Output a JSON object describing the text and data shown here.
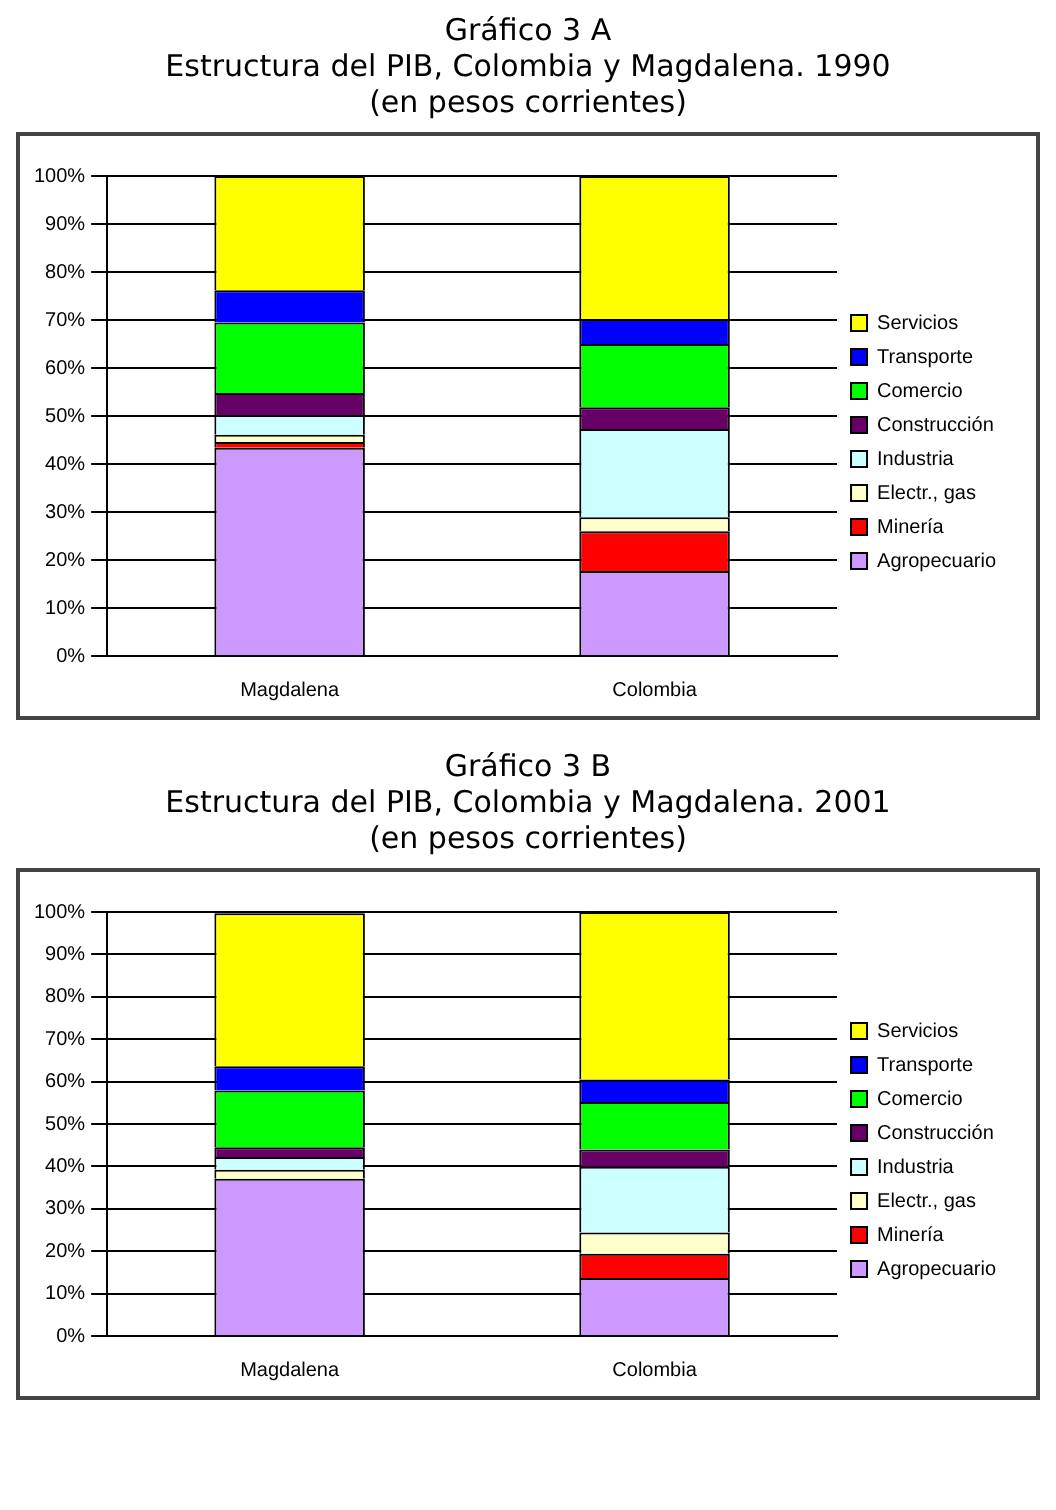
{
  "chart_data": [
    {
      "type": "bar",
      "title": "Gráfico 3 A",
      "subtitle": "Estructura del PIB, Colombia y Magdalena. 1990\n(en pesos corrientes)",
      "categories": [
        "Magdalena",
        "Colombia"
      ],
      "stacked": true,
      "ylim": [
        0,
        100
      ],
      "yticks": [
        {
          "value": 0,
          "label": "0%"
        },
        {
          "value": 10,
          "label": "10%"
        },
        {
          "value": 20,
          "label": "20%"
        },
        {
          "value": 30,
          "label": "30%"
        },
        {
          "value": 40,
          "label": "40%"
        },
        {
          "value": 50,
          "label": "50%"
        },
        {
          "value": 60,
          "label": "60%"
        },
        {
          "value": 70,
          "label": "70%"
        },
        {
          "value": 80,
          "label": "80%"
        },
        {
          "value": 90,
          "label": "90%"
        },
        {
          "value": 100,
          "label": "100%"
        }
      ],
      "grid": "y",
      "legend": "right",
      "series": [
        {
          "name": "Agropecuario",
          "color": "#cc99ff",
          "values": [
            43.4,
            17.7
          ]
        },
        {
          "name": "Minería",
          "color": "#ff0000",
          "values": [
            1.2,
            8.3
          ]
        },
        {
          "name": "Electr., gas",
          "color": "#ffffcc",
          "values": [
            1.5,
            2.9
          ]
        },
        {
          "name": "Industria",
          "color": "#ccffff",
          "values": [
            4.1,
            18.4
          ]
        },
        {
          "name": "Construcción",
          "color": "#660066",
          "values": [
            4.6,
            4.5
          ]
        },
        {
          "name": "Comercio",
          "color": "#00ff00",
          "values": [
            14.7,
            13.2
          ]
        },
        {
          "name": "Transporte",
          "color": "#0000ff",
          "values": [
            6.7,
            5.2
          ]
        },
        {
          "name": "Servicios",
          "color": "#ffff00",
          "values": [
            23.8,
            29.8
          ]
        }
      ]
    },
    {
      "type": "bar",
      "title": "Gráfico 3 B",
      "subtitle": "Estructura del PIB, Colombia y Magdalena. 2001\n(en pesos corrientes)",
      "categories": [
        "Magdalena",
        "Colombia"
      ],
      "stacked": true,
      "ylim": [
        0,
        100
      ],
      "yticks": [
        {
          "value": 0,
          "label": "0%"
        },
        {
          "value": 10,
          "label": "10%"
        },
        {
          "value": 20,
          "label": "20%"
        },
        {
          "value": 30,
          "label": "30%"
        },
        {
          "value": 40,
          "label": "40%"
        },
        {
          "value": 50,
          "label": "50%"
        },
        {
          "value": 60,
          "label": "60%"
        },
        {
          "value": 70,
          "label": "70%"
        },
        {
          "value": 80,
          "label": "80%"
        },
        {
          "value": 90,
          "label": "90%"
        },
        {
          "value": 100,
          "label": "100%"
        }
      ],
      "grid": "y",
      "legend": "right",
      "series": [
        {
          "name": "Agropecuario",
          "color": "#cc99ff",
          "values": [
            37.1,
            13.7
          ]
        },
        {
          "name": "Minería",
          "color": "#ff0000",
          "values": [
            null,
            5.7
          ]
        },
        {
          "name": "Electr., gas",
          "color": "#ffffcc",
          "values": [
            2.1,
            5.0
          ]
        },
        {
          "name": "Industria",
          "color": "#ccffff",
          "values": [
            3.0,
            15.5
          ]
        },
        {
          "name": "Construcción",
          "color": "#660066",
          "values": [
            2.3,
            4.1
          ]
        },
        {
          "name": "Comercio",
          "color": "#00ff00",
          "values": [
            13.4,
            11.2
          ]
        },
        {
          "name": "Transporte",
          "color": "#0000ff",
          "values": [
            5.7,
            5.3
          ]
        },
        {
          "name": "Servicios",
          "color": "#ffff00",
          "values": [
            36.1,
            39.5
          ]
        }
      ]
    }
  ]
}
